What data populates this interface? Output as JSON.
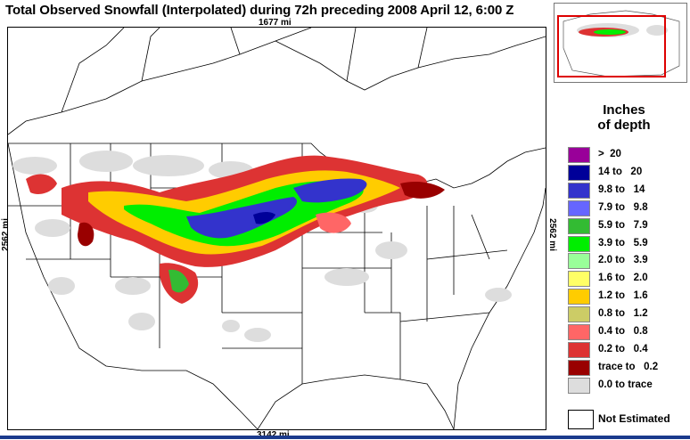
{
  "title": "Total Observed Snowfall (Interpolated) during 72h preceding 2008 April 12, 6:00 Z",
  "distances": {
    "top": "1677 mi",
    "bottom": "3142 mi",
    "left": "2562 mi",
    "right": "2562 mi"
  },
  "legend": {
    "title_line1": "Inches",
    "title_line2": "of depth",
    "items": [
      {
        "label": ">  20",
        "color": "#990099"
      },
      {
        "label": "14 to   20",
        "color": "#000099"
      },
      {
        "label": "9.8 to   14",
        "color": "#3333cc"
      },
      {
        "label": "7.9 to   9.8",
        "color": "#6666ff"
      },
      {
        "label": "5.9 to   7.9",
        "color": "#33bb33"
      },
      {
        "label": "3.9 to   5.9",
        "color": "#00ee00"
      },
      {
        "label": "2.0 to   3.9",
        "color": "#99ff99"
      },
      {
        "label": "1.6 to   2.0",
        "color": "#ffff66"
      },
      {
        "label": "1.2 to   1.6",
        "color": "#ffcc00"
      },
      {
        "label": "0.8 to   1.2",
        "color": "#cccc66"
      },
      {
        "label": "0.4 to   0.8",
        "color": "#ff6666"
      },
      {
        "label": "0.2 to   0.4",
        "color": "#dd3333"
      },
      {
        "label": "trace to   0.2",
        "color": "#990000"
      },
      {
        "label": "0.0 to trace",
        "color": "#dddddd"
      }
    ],
    "not_estimated": {
      "label": "Not Estimated",
      "color": "#ffffff"
    }
  }
}
